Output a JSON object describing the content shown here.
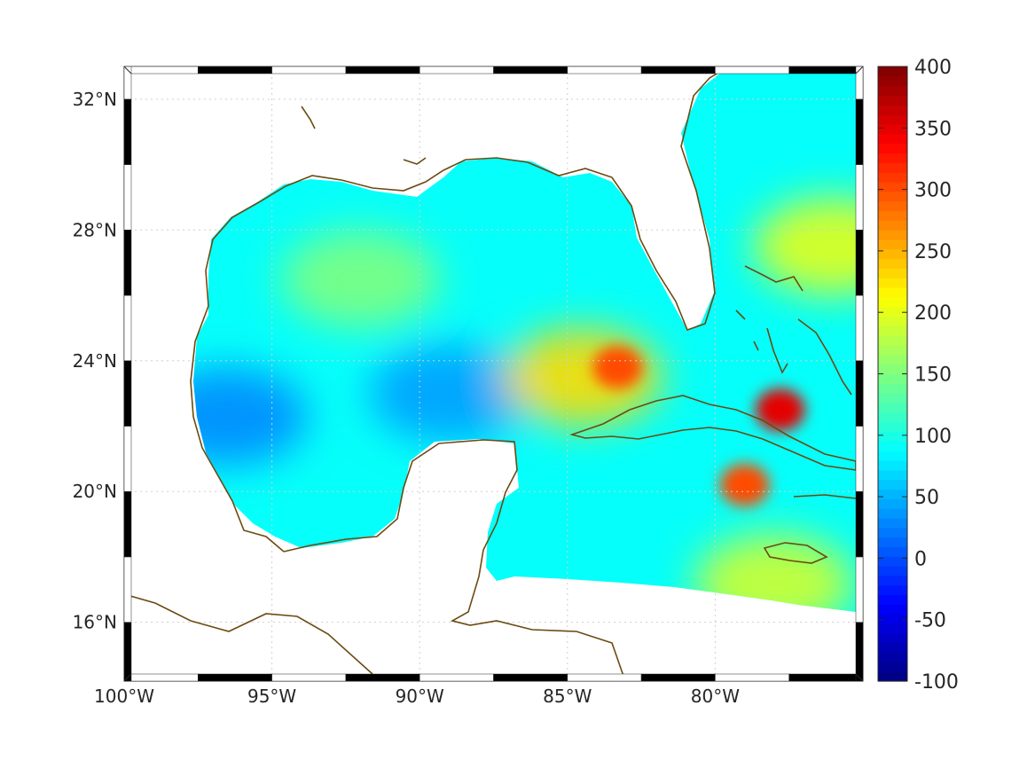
{
  "chart_data": {
    "type": "heatmap",
    "title": "",
    "projection": "map (lon/lat)",
    "x_axis": {
      "range": [
        -100,
        -75
      ],
      "ticks": [
        -100,
        -95,
        -90,
        -85,
        -80
      ],
      "tick_labels": [
        "100°W",
        "95°W",
        "90°W",
        "85°W",
        "80°W"
      ]
    },
    "y_axis": {
      "range": [
        14.2,
        33
      ],
      "ticks": [
        16,
        20,
        24,
        28,
        32
      ],
      "tick_labels": [
        "16°N",
        "20°N",
        "24°N",
        "28°N",
        "32°N"
      ]
    },
    "grid": true,
    "colorbar": {
      "range": [
        -100,
        400
      ],
      "ticks": [
        -100,
        -50,
        0,
        50,
        100,
        150,
        200,
        250,
        300,
        350,
        400
      ],
      "tick_labels": [
        "-100",
        "-50",
        "0",
        "50",
        "100",
        "150",
        "200",
        "250",
        "300",
        "350",
        "400"
      ],
      "colormap": "jet",
      "position": "right"
    },
    "field_summary": {
      "background_level": 90,
      "features": [
        {
          "where": "western Gulf of Mexico",
          "lon": -92,
          "lat": 26.5,
          "value": 150
        },
        {
          "where": "low band across central Gulf",
          "lon": -89,
          "lat": 23,
          "value": 40
        },
        {
          "where": "southwest Gulf",
          "lon": -96.5,
          "lat": 22.3,
          "value": 30
        },
        {
          "where": "northeast of Cuba / Florida Straits",
          "lon": -84.5,
          "lat": 23.5,
          "value": 230
        },
        {
          "where": "spot west of Cuba",
          "lon": -83.3,
          "lat": 23.8,
          "value": 300
        },
        {
          "where": "south of Cuba (Cayman area)",
          "lon": -79,
          "lat": 20.2,
          "value": 300
        },
        {
          "where": "north of Cuba near Bahamas",
          "lon": -77.8,
          "lat": 22.5,
          "value": 350
        },
        {
          "where": "Atlantic east of Florida",
          "lon": -76,
          "lat": 27.5,
          "value": 200
        },
        {
          "where": "Caribbean south of Jamaica",
          "lon": -78,
          "lat": 17.2,
          "value": 190
        }
      ]
    },
    "colors": {
      "coastline": "#6b4a12",
      "land": "#ffffff",
      "axis": "#262626",
      "grid": "#cfcfcf"
    }
  }
}
